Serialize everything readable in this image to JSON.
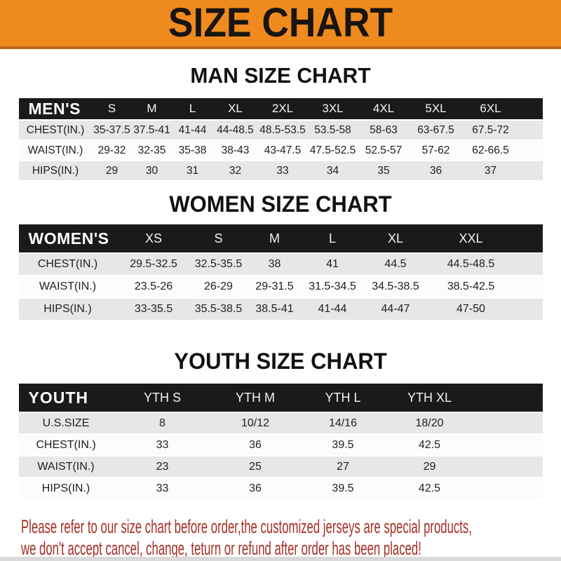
{
  "banner": {
    "title": "SIZE CHART"
  },
  "sections": [
    {
      "title": "MAN SIZE CHART",
      "table": {
        "header_label": "MEN'S",
        "columns": [
          "S",
          "M",
          "L",
          "XL",
          "2XL",
          "3XL",
          "4XL",
          "5XL",
          "6XL"
        ],
        "rows": [
          {
            "label": "CHEST(IN.)",
            "values": [
              "35-37.5",
              "37.5-41",
              "41-44",
              "44-48.5",
              "48.5-53.5",
              "53.5-58",
              "58-63",
              "63-67.5",
              "67.5-72"
            ]
          },
          {
            "label": "WAIST(IN.)",
            "values": [
              "29-32",
              "32-35",
              "35-38",
              "38-43",
              "43-47.5",
              "47.5-52.5",
              "52.5-57",
              "57-62",
              "62-66.5"
            ]
          },
          {
            "label": "HIPS(IN.)",
            "values": [
              "29",
              "30",
              "31",
              "32",
              "33",
              "34",
              "35",
              "36",
              "37"
            ]
          }
        ]
      }
    },
    {
      "title": "WOMEN SIZE CHART",
      "table": {
        "header_label": "WOMEN'S",
        "columns": [
          "XS",
          "S",
          "M",
          "L",
          "XL",
          "XXL"
        ],
        "rows": [
          {
            "label": "CHEST(IN.)",
            "values": [
              "29.5-32.5",
              "32.5-35.5",
              "38",
              "41",
              "44.5",
              "44.5-48.5"
            ]
          },
          {
            "label": "WAIST(IN.)",
            "values": [
              "23.5-26",
              "26-29",
              "29-31.5",
              "31.5-34.5",
              "34.5-38.5",
              "38.5-42.5"
            ]
          },
          {
            "label": "HIPS(IN.)",
            "values": [
              "33-35.5",
              "35.5-38.5",
              "38.5-41",
              "41-44",
              "44-47",
              "47-50"
            ]
          }
        ]
      }
    },
    {
      "title": "YOUTH SIZE CHART",
      "table": {
        "header_label": "YOUTH",
        "columns": [
          "YTH S",
          "YTH M",
          "YTH L",
          "YTH XL"
        ],
        "rows": [
          {
            "label": "U.S.SIZE",
            "values": [
              "8",
              "10/12",
              "14/16",
              "18/20"
            ]
          },
          {
            "label": "CHEST(IN.)",
            "values": [
              "33",
              "36",
              "39.5",
              "42.5"
            ]
          },
          {
            "label": "WAIST(IN.)",
            "values": [
              "23",
              "25",
              "27",
              "29"
            ]
          },
          {
            "label": "HIPS(IN.)",
            "values": [
              "33",
              "36",
              "39.5",
              "42.5"
            ]
          }
        ]
      }
    }
  ],
  "disclaimer": {
    "line1": "Please refer to our size chart before order,the customized jerseys are special products,",
    "line2": "we don't accept cancel, change, teturn or refund after order has been placed!"
  },
  "colors": {
    "banner_orange": "#EF8A1F",
    "banner_border": "#C2661B",
    "table_header_black": "#1A1A18",
    "row_stripe_gray": "#E7E7E7",
    "disclaimer_red": "#A43026"
  }
}
